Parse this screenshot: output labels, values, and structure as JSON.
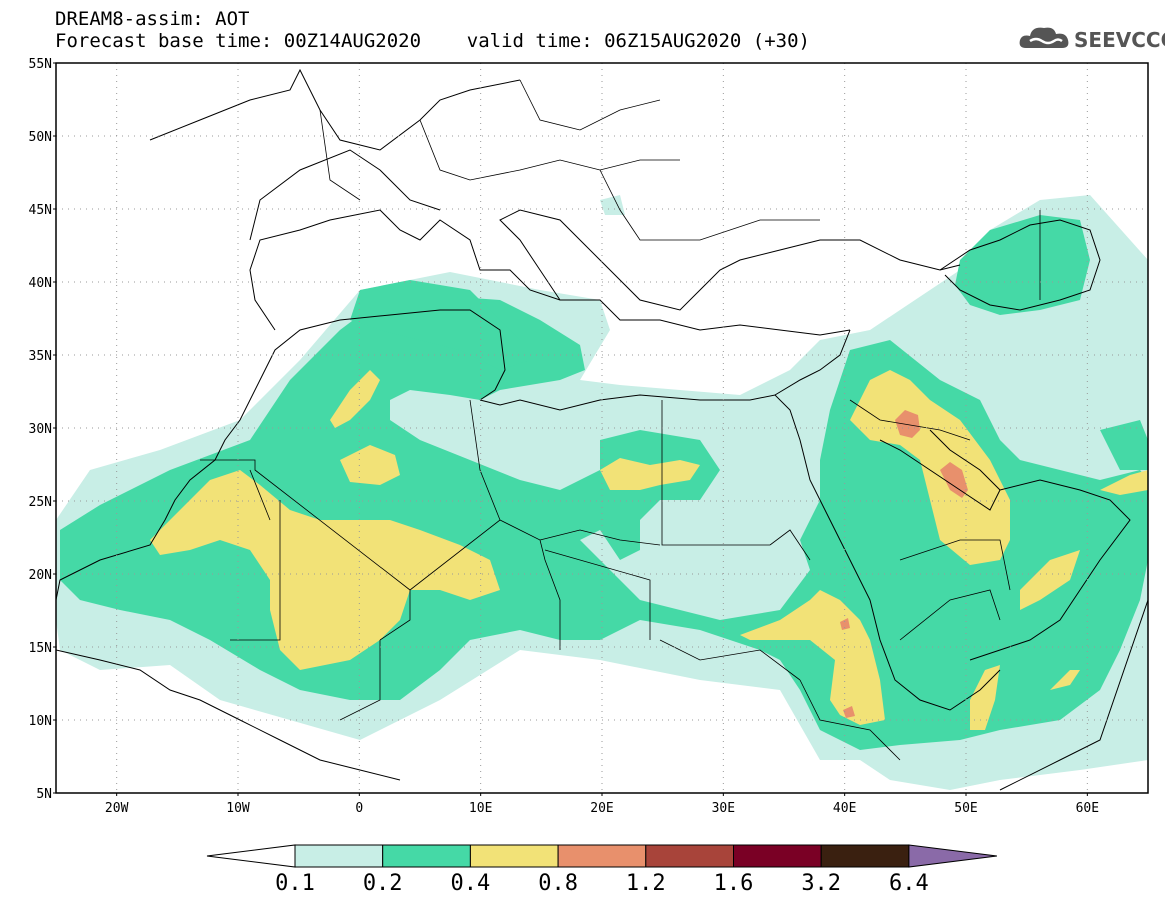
{
  "header": {
    "line1": "DREAM8-assim: AOT",
    "line2": "Forecast base time: 00Z14AUG2020    valid time: 06Z15AUG2020 (+30)"
  },
  "logo": {
    "text": "SEEVCCC",
    "icon": "cloud-icon"
  },
  "map": {
    "lon_range": [
      -25,
      65
    ],
    "lat_range": [
      5,
      55
    ],
    "lat_labels": [
      "55N",
      "50N",
      "45N",
      "40N",
      "35N",
      "30N",
      "25N",
      "20N",
      "15N",
      "10N",
      "5N"
    ],
    "lat_values": [
      55,
      50,
      45,
      40,
      35,
      30,
      25,
      20,
      15,
      10,
      5
    ],
    "lon_labels": [
      "20W",
      "10W",
      "0",
      "10E",
      "20E",
      "30E",
      "40E",
      "50E",
      "60E"
    ],
    "lon_values": [
      -20,
      -10,
      0,
      10,
      20,
      30,
      40,
      50,
      60
    ]
  },
  "colorbar": {
    "labels": [
      "0.1",
      "0.2",
      "0.4",
      "0.8",
      "1.2",
      "1.6",
      "3.2",
      "6.4"
    ],
    "colors": [
      "#ffffff",
      "#c8eee6",
      "#45d9a6",
      "#f2e277",
      "#e8906c",
      "#a8443a",
      "#7a0025",
      "#3a2010",
      "#8a6aa8"
    ]
  }
}
